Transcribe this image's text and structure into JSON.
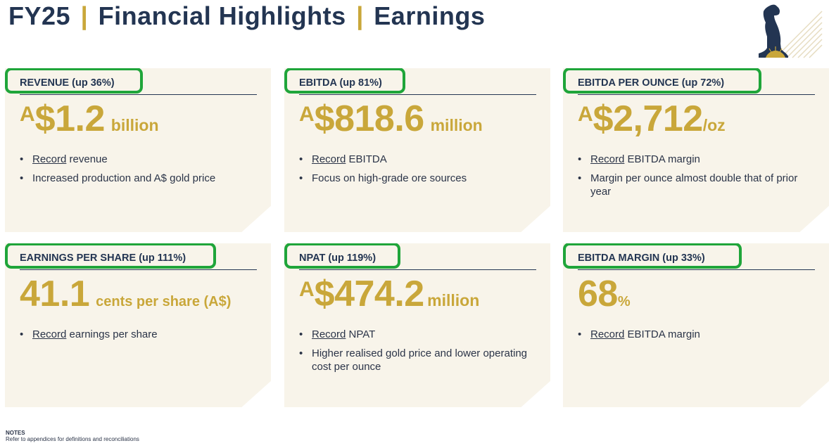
{
  "header": {
    "part1": "FY25",
    "separator": "|",
    "part2": "Financial Highlights",
    "part3": "Earnings"
  },
  "logo": {
    "icon": "horse-logo-icon"
  },
  "colors": {
    "navy": "#233552",
    "gold": "#c9a73a",
    "card_bg": "#f8f4ea",
    "highlight": "#1fa53a"
  },
  "cards": [
    {
      "label": "REVENUE (up 36%)",
      "prefix": "A",
      "value": "$1.2",
      "unit": "billion",
      "bullets": [
        {
          "underlined": "Record",
          "text": " revenue"
        },
        {
          "underlined": "",
          "text": "Increased production and A$ gold price"
        }
      ]
    },
    {
      "label": "EBITDA (up 81%)",
      "prefix": "A",
      "value": "$818.6",
      "unit": "million",
      "bullets": [
        {
          "underlined": "Record",
          "text": " EBITDA"
        },
        {
          "underlined": "",
          "text": "Focus on high-grade ore sources"
        }
      ]
    },
    {
      "label": "EBITDA PER OUNCE (up 72%)",
      "prefix": "A",
      "value": "$2,712",
      "unit": "/oz",
      "bullets": [
        {
          "underlined": "Record",
          "text": " EBITDA margin"
        },
        {
          "underlined": "",
          "text": "Margin per ounce almost double that of prior year"
        }
      ]
    },
    {
      "label": "EARNINGS PER SHARE (up 111%)",
      "prefix": "",
      "value": "41.1",
      "unit": "cents per share (A$)",
      "bullets": [
        {
          "underlined": "Record",
          "text": " earnings per share"
        }
      ]
    },
    {
      "label": "NPAT (up 119%)",
      "prefix": "A",
      "value": "$474.2",
      "unit": "million",
      "bullets": [
        {
          "underlined": "Record",
          "text": " NPAT"
        },
        {
          "underlined": "",
          "text": "Higher realised gold price and lower operating cost per ounce"
        }
      ]
    },
    {
      "label": "EBITDA MARGIN (up 33%)",
      "prefix": "",
      "value": "68",
      "unit": "%",
      "bullets": [
        {
          "underlined": "Record",
          "text": " EBITDA margin"
        }
      ]
    }
  ],
  "bullet_char": "•",
  "notes": {
    "title": "NOTES",
    "text": "Refer to appendices for definitions and reconciliations"
  }
}
